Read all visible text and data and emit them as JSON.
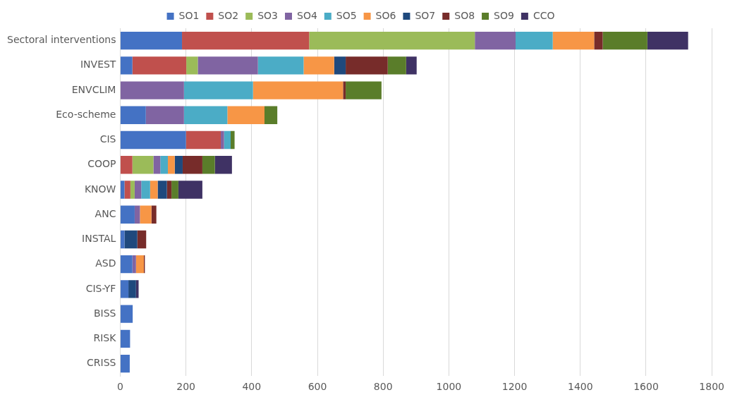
{
  "chart_data": {
    "type": "bar",
    "orientation": "horizontal",
    "stacked": true,
    "categories": [
      "Sectoral interventions",
      "INVEST",
      "ENVCLIM",
      "Eco-scheme",
      "CIS",
      "COOP",
      "KNOW",
      "ANC",
      "INSTAL",
      "ASD",
      "CIS-YF",
      "BISS",
      "RISK",
      "CRISS"
    ],
    "series": [
      {
        "name": "SO1",
        "color": "#4472c4",
        "values": [
          188,
          37,
          0,
          78,
          200,
          0,
          13,
          44,
          13,
          37,
          25,
          38,
          30,
          29
        ]
      },
      {
        "name": "SO2",
        "color": "#c0504d",
        "values": [
          387,
          164,
          0,
          0,
          106,
          37,
          18,
          0,
          0,
          0,
          0,
          0,
          0,
          0
        ]
      },
      {
        "name": "SO3",
        "color": "#9bbb59",
        "values": [
          504,
          35,
          0,
          0,
          0,
          64,
          13,
          0,
          0,
          0,
          0,
          0,
          0,
          0
        ]
      },
      {
        "name": "SO4",
        "color": "#8064a2",
        "values": [
          124,
          183,
          194,
          116,
          10,
          21,
          20,
          16,
          0,
          11,
          0,
          0,
          0,
          0
        ]
      },
      {
        "name": "SO5",
        "color": "#4bacc6",
        "values": [
          113,
          139,
          210,
          132,
          20,
          23,
          27,
          0,
          0,
          0,
          0,
          0,
          0,
          0
        ]
      },
      {
        "name": "SO6",
        "color": "#f79646",
        "values": [
          126,
          93,
          274,
          113,
          0,
          21,
          23,
          35,
          0,
          24,
          0,
          0,
          0,
          0
        ]
      },
      {
        "name": "SO7",
        "color": "#1f497d",
        "values": [
          0,
          35,
          0,
          0,
          0,
          24,
          28,
          0,
          39,
          0,
          23,
          0,
          0,
          0
        ]
      },
      {
        "name": "SO8",
        "color": "#772c2a",
        "values": [
          26,
          128,
          8,
          0,
          0,
          60,
          14,
          15,
          27,
          3,
          0,
          0,
          0,
          0
        ]
      },
      {
        "name": "SO9",
        "color": "#5a7d2a",
        "values": [
          136,
          56,
          109,
          39,
          12,
          38,
          21,
          0,
          0,
          0,
          0,
          0,
          0,
          0
        ]
      },
      {
        "name": "CCO",
        "color": "#3f3264",
        "values": [
          124,
          32,
          0,
          0,
          0,
          52,
          73,
          0,
          0,
          0,
          8,
          0,
          0,
          0
        ]
      }
    ],
    "xlim": [
      0,
      1800
    ],
    "xticks": [
      0,
      200,
      400,
      600,
      800,
      1000,
      1200,
      1400,
      1600,
      1800
    ],
    "grid": "x",
    "legend": "top"
  }
}
